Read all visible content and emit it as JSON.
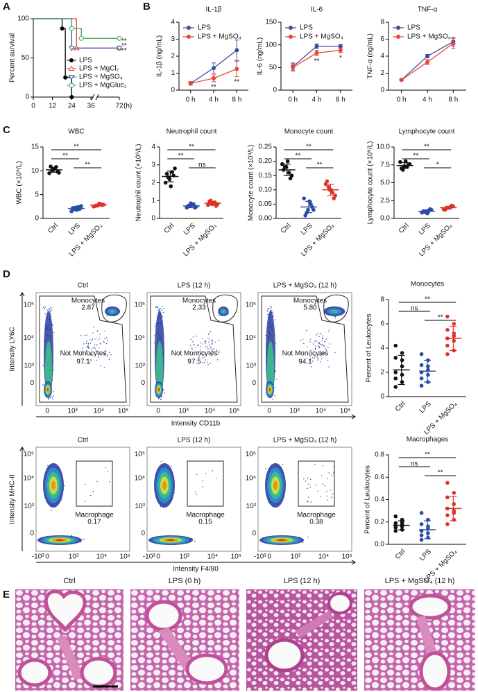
{
  "panel_labels": [
    "A",
    "B",
    "C",
    "D",
    "E"
  ],
  "chart_data": [
    {
      "type": "step",
      "ylabel": "Percent survival",
      "xlabel": "(h)",
      "xlim": [
        0,
        72
      ],
      "xticks": [
        0,
        12,
        24,
        36,
        72
      ],
      "ylim": [
        0,
        100
      ],
      "yticks": [
        0,
        50,
        100
      ],
      "series": [
        {
          "name": "LPS",
          "color": "#000000",
          "marker": "dot",
          "x": [
            0,
            18,
            20,
            24
          ],
          "values": [
            100,
            87.5,
            25,
            0
          ]
        },
        {
          "name": "LPS + MgCl₂",
          "color": "#e8453c",
          "marker": "triangle",
          "x": [
            0,
            27,
            72
          ],
          "values": [
            100,
            62.5,
            62.5
          ],
          "annotation": "**"
        },
        {
          "name": "LPS + MgSO₄",
          "color": "#3b4fa0",
          "marker": "triangle-down",
          "x": [
            0,
            24,
            72
          ],
          "values": [
            100,
            62.5,
            62.5
          ],
          "annotation": "**"
        },
        {
          "name": "LPS + MgGluc₂",
          "color": "#3aa65a",
          "marker": "circle",
          "x": [
            0,
            24,
            30,
            72
          ],
          "values": [
            100,
            87.5,
            75,
            75
          ],
          "annotation": "**"
        }
      ]
    },
    {
      "type": "line",
      "title": "IL-1β",
      "ylabel": "IL-1β (ng/mL)",
      "categories": [
        "0 h",
        "4 h",
        "8 h"
      ],
      "ylim": [
        0,
        4
      ],
      "yticks": [
        0,
        1,
        2,
        3,
        4
      ],
      "series": [
        {
          "name": "LPS",
          "color": "#3b4fa0",
          "values": [
            0.4,
            1.3,
            2.35
          ],
          "errors": [
            0.1,
            0.3,
            0.6
          ]
        },
        {
          "name": "LPS + MgSO₄",
          "color": "#e8453c",
          "values": [
            0.4,
            0.7,
            1.25
          ],
          "errors": [
            0.1,
            0.2,
            0.45
          ]
        }
      ],
      "annotations": [
        null,
        "**",
        "**"
      ]
    },
    {
      "type": "line",
      "title": "IL-6",
      "ylabel": "IL-6 (ng/mL)",
      "categories": [
        "0 h",
        "4 h",
        "8 h"
      ],
      "ylim": [
        0,
        150
      ],
      "yticks": [
        0,
        50,
        100,
        150
      ],
      "series": [
        {
          "name": "LPS",
          "color": "#3b4fa0",
          "values": [
            52,
            97,
            97
          ],
          "errors": [
            8,
            5,
            4
          ]
        },
        {
          "name": "LPS + MgSO₄",
          "color": "#e8453c",
          "values": [
            50,
            82,
            88
          ],
          "errors": [
            8,
            6,
            5
          ]
        }
      ],
      "annotations": [
        null,
        "**",
        "*"
      ]
    },
    {
      "type": "line",
      "title": "TNF-α",
      "ylabel": "TNF-α (ng/mL)",
      "categories": [
        "0 h",
        "4 h",
        "8 h"
      ],
      "ylim": [
        0,
        8
      ],
      "yticks": [
        0,
        2,
        4,
        6,
        8
      ],
      "series": [
        {
          "name": "LPS",
          "color": "#3b4fa0",
          "values": [
            1.2,
            4.0,
            5.7
          ],
          "errors": [
            0.1,
            0.2,
            0.5
          ]
        },
        {
          "name": "LPS + MgSO₄",
          "color": "#e8453c",
          "values": [
            1.2,
            3.3,
            5.5
          ],
          "errors": [
            0.1,
            0.3,
            0.6
          ]
        }
      ],
      "annotations": [
        null,
        null,
        null
      ]
    },
    {
      "type": "strip",
      "title": "WBC",
      "ylabel": "WBC (×10⁹/L)",
      "categories": [
        "Ctrl",
        "LPS",
        "LPS + MgSO₄"
      ],
      "ylim": [
        0,
        15
      ],
      "yticks": [
        0,
        5,
        10,
        15
      ],
      "groups": [
        {
          "color": "#111111",
          "values": [
            9.5,
            10.8,
            10.1,
            9.6,
            10.5,
            10.9,
            9.8,
            10.3
          ],
          "mean": 10.2,
          "sd": 0.5
        },
        {
          "color": "#2b4ba8",
          "values": [
            1.5,
            2.4,
            1.9,
            2.6,
            1.8,
            2.2,
            2.0,
            2.3
          ],
          "mean": 2.1,
          "sd": 0.35
        },
        {
          "color": "#e0302a",
          "values": [
            2.5,
            3.0,
            2.7,
            2.9,
            3.1,
            2.6,
            2.8,
            2.7
          ],
          "mean": 2.8,
          "sd": 0.2
        }
      ],
      "significance": [
        "**",
        "**",
        "**"
      ]
    },
    {
      "type": "strip",
      "title": "Neutrophil count",
      "ylabel": "Neutrophil count (×10⁹/L)",
      "categories": [
        "Ctrl",
        "LPS",
        "LPS + MgSO₄"
      ],
      "ylim": [
        0,
        4
      ],
      "yticks": [
        0,
        1,
        2,
        3,
        4
      ],
      "groups": [
        {
          "color": "#111111",
          "values": [
            2.0,
            2.6,
            2.3,
            2.8,
            1.8,
            2.5,
            2.4,
            2.2
          ],
          "mean": 2.35,
          "sd": 0.3
        },
        {
          "color": "#2b4ba8",
          "values": [
            0.6,
            0.8,
            0.7,
            0.65,
            0.75,
            0.7,
            0.6,
            0.85
          ],
          "mean": 0.7,
          "sd": 0.1
        },
        {
          "color": "#e0302a",
          "values": [
            0.75,
            0.9,
            1.0,
            0.8,
            0.85,
            0.95,
            0.7,
            0.8
          ],
          "mean": 0.85,
          "sd": 0.1
        }
      ],
      "significance": [
        "**",
        "**",
        "ns"
      ]
    },
    {
      "type": "strip",
      "title": "Monocyte count",
      "ylabel": "Monocyte count (×10⁹/L)",
      "categories": [
        "Ctrl",
        "LPS",
        "LPS + MgSO₄"
      ],
      "ylim": [
        0,
        0.25
      ],
      "yticks": [
        {
          "value": 0,
          "label": "0.00"
        },
        0.05,
        {
          "value": 0.1,
          "label": "0.10"
        },
        0.15,
        {
          "value": 0.2,
          "label": "0.20"
        },
        0.25
      ],
      "groups": [
        {
          "color": "#111111",
          "values": [
            0.19,
            0.16,
            0.18,
            0.15,
            0.2,
            0.17,
            0.14,
            0.18
          ],
          "mean": 0.17,
          "sd": 0.02
        },
        {
          "color": "#2b4ba8",
          "values": [
            0.07,
            0.05,
            0.02,
            0.03,
            0.06,
            0.01,
            0.04,
            0.03
          ],
          "mean": 0.04,
          "sd": 0.02
        },
        {
          "color": "#e0302a",
          "values": [
            0.12,
            0.09,
            0.11,
            0.08,
            0.1,
            0.13,
            0.07,
            0.1
          ],
          "mean": 0.1,
          "sd": 0.02
        }
      ],
      "significance": [
        "**",
        "**",
        "**"
      ]
    },
    {
      "type": "strip",
      "title": "Lymphocyte count",
      "ylabel": "Lymphocyte count (×10⁹/L)",
      "categories": [
        "Ctrl",
        "LPS",
        "LPS + MgSO₄"
      ],
      "ylim": [
        0,
        10
      ],
      "yticks": [
        {
          "value": 0,
          "label": "0.0"
        },
        2.5,
        {
          "value": 5,
          "label": "5.0"
        },
        7.5,
        {
          "value": 10,
          "label": "10.0"
        }
      ],
      "groups": [
        {
          "color": "#111111",
          "values": [
            7.9,
            7.2,
            6.8,
            7.6,
            8.0,
            7.0,
            7.5,
            7.3
          ],
          "mean": 7.4,
          "sd": 0.4
        },
        {
          "color": "#2b4ba8",
          "values": [
            0.8,
            1.1,
            0.9,
            1.2,
            0.7,
            1.0,
            1.3,
            0.9
          ],
          "mean": 1.0,
          "sd": 0.2
        },
        {
          "color": "#e0302a",
          "values": [
            1.3,
            1.6,
            1.4,
            1.7,
            1.5,
            1.2,
            1.8,
            1.5
          ],
          "mean": 1.5,
          "sd": 0.2
        }
      ],
      "significance": [
        "**",
        "**",
        "*"
      ]
    },
    {
      "type": "strip",
      "title": "Monocytes",
      "ylabel": "Percent of Leukocytes",
      "categories": [
        "Ctrl",
        "LPS",
        "LPS + MgSO₄"
      ],
      "ylim": [
        0,
        8
      ],
      "yticks": [
        0,
        2,
        4,
        6,
        8
      ],
      "groups": [
        {
          "color": "#111111",
          "values": [
            4.2,
            3.6,
            3.2,
            2.5,
            2.0,
            1.8,
            1.5,
            1.2,
            0.8,
            3.0
          ],
          "mean": 2.2,
          "sd": 1.2
        },
        {
          "color": "#2b4ba8",
          "values": [
            3.5,
            3.0,
            2.6,
            2.2,
            2.0,
            1.8,
            1.5,
            1.2,
            0.9,
            2.5
          ],
          "mean": 2.1,
          "sd": 0.9
        },
        {
          "color": "#e0302a",
          "values": [
            6.6,
            6.0,
            5.5,
            5.0,
            4.8,
            4.6,
            4.2,
            3.8,
            3.5,
            5.2
          ],
          "mean": 4.8,
          "sd": 1.0
        }
      ],
      "significance": [
        "**",
        "ns",
        "**"
      ]
    },
    {
      "type": "strip",
      "title": "Macrophages",
      "ylabel": "Percent of Leukocytes",
      "categories": [
        "Ctrl",
        "LPS",
        "LPS + MgSO₄"
      ],
      "ylim": [
        0,
        0.8
      ],
      "yticks": [
        {
          "value": 0,
          "label": "0.0"
        },
        0.2,
        0.4,
        0.6,
        0.8
      ],
      "groups": [
        {
          "color": "#111111",
          "values": [
            0.25,
            0.22,
            0.19,
            0.18,
            0.17,
            0.16,
            0.15,
            0.13,
            0.12,
            0.2
          ],
          "mean": 0.17,
          "sd": 0.04
        },
        {
          "color": "#2b4ba8",
          "values": [
            0.28,
            0.22,
            0.18,
            0.14,
            0.12,
            0.1,
            0.08,
            0.06,
            0.04,
            0.16
          ],
          "mean": 0.13,
          "sd": 0.08
        },
        {
          "color": "#e0302a",
          "values": [
            0.55,
            0.46,
            0.42,
            0.36,
            0.32,
            0.3,
            0.26,
            0.22,
            0.18,
            0.28
          ],
          "mean": 0.32,
          "sd": 0.11
        }
      ],
      "significance": [
        "**",
        "ns",
        "**"
      ]
    }
  ],
  "flow": [
    {
      "ylabel": "Intensity LY6C",
      "xlabel": "Intensity CD11b",
      "yticks": [
        "10⁵",
        "10⁴",
        "10³",
        "0"
      ],
      "xticks": [
        "0",
        "10³",
        "10⁴",
        "10⁵"
      ],
      "plots": [
        {
          "title": "Ctrl",
          "gate": "Monocytes",
          "gate_value": "2.87",
          "other": "Not Monocytes",
          "other_value": "97.1"
        },
        {
          "title": "LPS (12 h)",
          "gate": "Monocytes",
          "gate_value": "2.33",
          "other": "Not Monocytes",
          "other_value": "97.5"
        },
        {
          "title": "LPS + MgSO₄ (12 h)",
          "gate": "Monocytes",
          "gate_value": "5.80",
          "other": "Not Monocytes",
          "other_value": "94.1"
        }
      ]
    },
    {
      "ylabel": "Intensity MHC-II",
      "xlabel": "Intensity F4/80",
      "yticks": [
        "10⁵",
        "10⁴",
        "10³",
        "0"
      ],
      "xticks": [
        "-10³",
        "0",
        "10³",
        "10⁴",
        "10⁵"
      ],
      "plots": [
        {
          "title": "Ctrl",
          "gate": "Macrophage",
          "gate_value": "0.17"
        },
        {
          "title": "LPS (12 h)",
          "gate": "Macrophage",
          "gate_value": "0.15"
        },
        {
          "title": "LPS + MgSO₄ (12 h)",
          "gate": "Macrophage",
          "gate_value": "0.38"
        }
      ]
    }
  ],
  "histology": {
    "titles": [
      "Ctrl",
      "LPS (0 h)",
      "LPS (12 h)",
      "LPS + MgSO₄ (12 h)"
    ]
  }
}
